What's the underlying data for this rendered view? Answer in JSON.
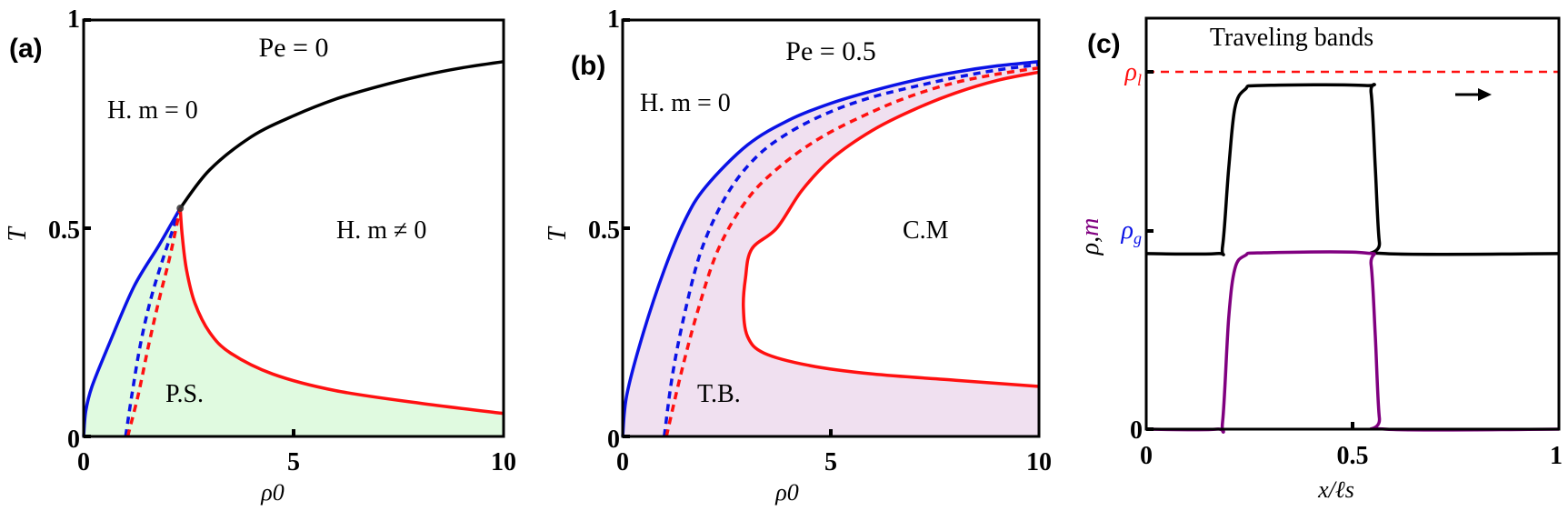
{
  "figure": {
    "panels": [
      {
        "id": "a",
        "label": "(a)",
        "title": "Pe = 0"
      },
      {
        "id": "b",
        "label": "(b)",
        "title": "Pe = 0.5"
      },
      {
        "id": "c",
        "label": "(c)",
        "title": "Traveling bands"
      }
    ]
  },
  "colors": {
    "black": "#000000",
    "blue": "#0a12e6",
    "red": "#ff1010",
    "purple": "#800080",
    "fill_a": "#e0fae0",
    "fill_b": "#f0e0f0"
  },
  "chart_data": [
    {
      "panel": "(a)",
      "type": "line",
      "title": "Pe = 0",
      "xlabel": "ρ0",
      "ylabel": "T",
      "xlim": [
        0,
        10
      ],
      "ylim": [
        0,
        1
      ],
      "xticks": [
        0,
        5,
        10
      ],
      "xtick_labels": [
        "0",
        "5",
        "10"
      ],
      "yticks": [
        0,
        0.5,
        1
      ],
      "ytick_labels": [
        "0",
        "0.5",
        "1"
      ],
      "grid": false,
      "annotations": [
        {
          "text": "H. m = 0",
          "x": 1.9,
          "y": 0.8
        },
        {
          "text": "H. m ≠ 0",
          "x": 7.5,
          "y": 0.5
        },
        {
          "text": "P.S.",
          "x": 2.4,
          "y": 0.1
        }
      ],
      "critical_point": {
        "x": 2.3,
        "y": 0.548
      },
      "shaded_region": {
        "name": "P.S.",
        "color": "#e0fae0"
      },
      "series": [
        {
          "name": "critical line",
          "color": "#000000",
          "style": "solid",
          "points": [
            [
              2.3,
              0.548
            ],
            [
              3,
              0.64
            ],
            [
              4,
              0.72
            ],
            [
              5,
              0.77
            ],
            [
              6,
              0.81
            ],
            [
              7,
              0.84
            ],
            [
              8,
              0.865
            ],
            [
              9,
              0.885
            ],
            [
              10,
              0.9
            ]
          ]
        },
        {
          "name": "binodal (gas)",
          "color": "#0a12e6",
          "style": "solid",
          "points": [
            [
              0,
              0
            ],
            [
              0.05,
              0.06
            ],
            [
              0.2,
              0.12
            ],
            [
              0.6,
              0.22
            ],
            [
              1.2,
              0.36
            ],
            [
              1.8,
              0.46
            ],
            [
              2.3,
              0.548
            ]
          ]
        },
        {
          "name": "spinodal (gas)",
          "color": "#0a12e6",
          "style": "dashed",
          "points": [
            [
              1.0,
              0
            ],
            [
              1.15,
              0.1
            ],
            [
              1.35,
              0.22
            ],
            [
              1.6,
              0.33
            ],
            [
              1.9,
              0.43
            ],
            [
              2.3,
              0.548
            ]
          ]
        },
        {
          "name": "spinodal (liquid)",
          "color": "#ff1010",
          "style": "dashed",
          "points": [
            [
              1.05,
              0
            ],
            [
              1.3,
              0.1
            ],
            [
              1.55,
              0.22
            ],
            [
              1.8,
              0.33
            ],
            [
              2.05,
              0.43
            ],
            [
              2.3,
              0.548
            ]
          ]
        },
        {
          "name": "binodal (liquid)",
          "color": "#ff1010",
          "style": "solid",
          "points": [
            [
              2.3,
              0.548
            ],
            [
              2.35,
              0.48
            ],
            [
              2.45,
              0.4
            ],
            [
              2.65,
              0.32
            ],
            [
              3,
              0.25
            ],
            [
              3.5,
              0.2
            ],
            [
              4.5,
              0.15
            ],
            [
              6,
              0.11
            ],
            [
              8,
              0.08
            ],
            [
              10,
              0.055
            ]
          ]
        }
      ]
    },
    {
      "panel": "(b)",
      "type": "line",
      "title": "Pe = 0.5",
      "xlabel": "ρ0",
      "ylabel": "T",
      "xlim": [
        0,
        10
      ],
      "ylim": [
        0,
        1
      ],
      "xticks": [
        0,
        5,
        10
      ],
      "xtick_labels": [
        "0",
        "5",
        "10"
      ],
      "yticks": [
        0,
        0.5,
        1
      ],
      "ytick_labels": [
        "0",
        "0.5",
        "1"
      ],
      "grid": false,
      "annotations": [
        {
          "text": "H. m = 0",
          "x": 2.1,
          "y": 0.8
        },
        {
          "text": "C.M",
          "x": 7.5,
          "y": 0.5
        },
        {
          "text": "T.B.",
          "x": 2.7,
          "y": 0.1
        }
      ],
      "shaded_region": {
        "name": "T.B.",
        "color": "#f0e0f0"
      },
      "series": [
        {
          "name": "binodal (gas)",
          "color": "#0a12e6",
          "style": "solid",
          "points": [
            [
              0,
              0
            ],
            [
              0.1,
              0.1
            ],
            [
              0.5,
              0.25
            ],
            [
              1,
              0.4
            ],
            [
              1.5,
              0.52
            ],
            [
              2,
              0.6
            ],
            [
              3,
              0.7
            ],
            [
              4,
              0.76
            ],
            [
              5,
              0.8
            ],
            [
              6,
              0.83
            ],
            [
              7,
              0.855
            ],
            [
              8,
              0.875
            ],
            [
              9,
              0.89
            ],
            [
              10,
              0.9
            ]
          ]
        },
        {
          "name": "spinodal (gas)",
          "color": "#0a12e6",
          "style": "dashed",
          "points": [
            [
              1,
              0
            ],
            [
              1.2,
              0.15
            ],
            [
              1.5,
              0.3
            ],
            [
              1.9,
              0.45
            ],
            [
              2.5,
              0.58
            ],
            [
              3.2,
              0.67
            ],
            [
              4,
              0.73
            ],
            [
              5,
              0.78
            ],
            [
              6,
              0.815
            ],
            [
              7,
              0.84
            ],
            [
              8,
              0.862
            ],
            [
              9,
              0.88
            ],
            [
              10,
              0.893
            ]
          ]
        },
        {
          "name": "spinodal (liquid)",
          "color": "#ff1010",
          "style": "dashed",
          "points": [
            [
              1.05,
              0
            ],
            [
              1.4,
              0.15
            ],
            [
              1.8,
              0.3
            ],
            [
              2.3,
              0.45
            ],
            [
              3,
              0.57
            ],
            [
              3.8,
              0.65
            ],
            [
              4.8,
              0.72
            ],
            [
              6,
              0.78
            ],
            [
              7,
              0.82
            ],
            [
              8,
              0.85
            ],
            [
              9,
              0.87
            ],
            [
              10,
              0.885
            ]
          ]
        },
        {
          "name": "binodal (liquid)",
          "color": "#ff1010",
          "style": "solid",
          "points": [
            [
              10,
              0.875
            ],
            [
              9,
              0.855
            ],
            [
              8,
              0.825
            ],
            [
              7,
              0.785
            ],
            [
              6,
              0.735
            ],
            [
              5,
              0.665
            ],
            [
              4.3,
              0.59
            ],
            [
              3.7,
              0.5
            ],
            [
              3.1,
              0.45
            ],
            [
              2.95,
              0.38
            ],
            [
              2.9,
              0.31
            ],
            [
              3.0,
              0.24
            ],
            [
              3.4,
              0.2
            ],
            [
              4.5,
              0.17
            ],
            [
              6,
              0.15
            ],
            [
              8,
              0.135
            ],
            [
              10,
              0.12
            ]
          ]
        }
      ]
    },
    {
      "panel": "(c)",
      "type": "line",
      "title": "Traveling bands",
      "xlabel": "x/ℓs",
      "ylabel": "ρ, m",
      "xlim": [
        0,
        1
      ],
      "ylim": [
        0,
        1.1
      ],
      "xticks": [
        0,
        0.5,
        1
      ],
      "xtick_labels": [
        "0",
        "0.5",
        "1"
      ],
      "yticks": [
        0,
        0.47,
        0.92
      ],
      "ytick_labels": [
        "0",
        "ρg",
        "ρl"
      ],
      "grid": false,
      "reference_lines": [
        {
          "name": "ρl",
          "y": 0.92,
          "color": "#ff1010",
          "style": "dashed"
        }
      ],
      "annotations": [
        {
          "text": "→",
          "x": 0.8,
          "y": 0.83,
          "meaning": "direction of travel"
        }
      ],
      "series": [
        {
          "name": "ρ",
          "color": "#000000",
          "style": "solid",
          "points": [
            [
              0,
              0.47
            ],
            [
              0.17,
              0.47
            ],
            [
              0.185,
              0.49
            ],
            [
              0.2,
              0.7
            ],
            [
              0.215,
              0.86
            ],
            [
              0.24,
              0.91
            ],
            [
              0.28,
              0.92
            ],
            [
              0.53,
              0.92
            ],
            [
              0.545,
              0.9
            ],
            [
              0.555,
              0.7
            ],
            [
              0.565,
              0.5
            ],
            [
              0.58,
              0.47
            ],
            [
              1,
              0.47
            ]
          ]
        },
        {
          "name": "m",
          "color": "#800080",
          "style": "solid",
          "points": [
            [
              0,
              0
            ],
            [
              0.17,
              0
            ],
            [
              0.185,
              0.02
            ],
            [
              0.2,
              0.3
            ],
            [
              0.215,
              0.43
            ],
            [
              0.24,
              0.465
            ],
            [
              0.28,
              0.472
            ],
            [
              0.53,
              0.472
            ],
            [
              0.545,
              0.44
            ],
            [
              0.555,
              0.25
            ],
            [
              0.565,
              0.03
            ],
            [
              0.58,
              0
            ],
            [
              1,
              0
            ]
          ]
        }
      ]
    }
  ]
}
